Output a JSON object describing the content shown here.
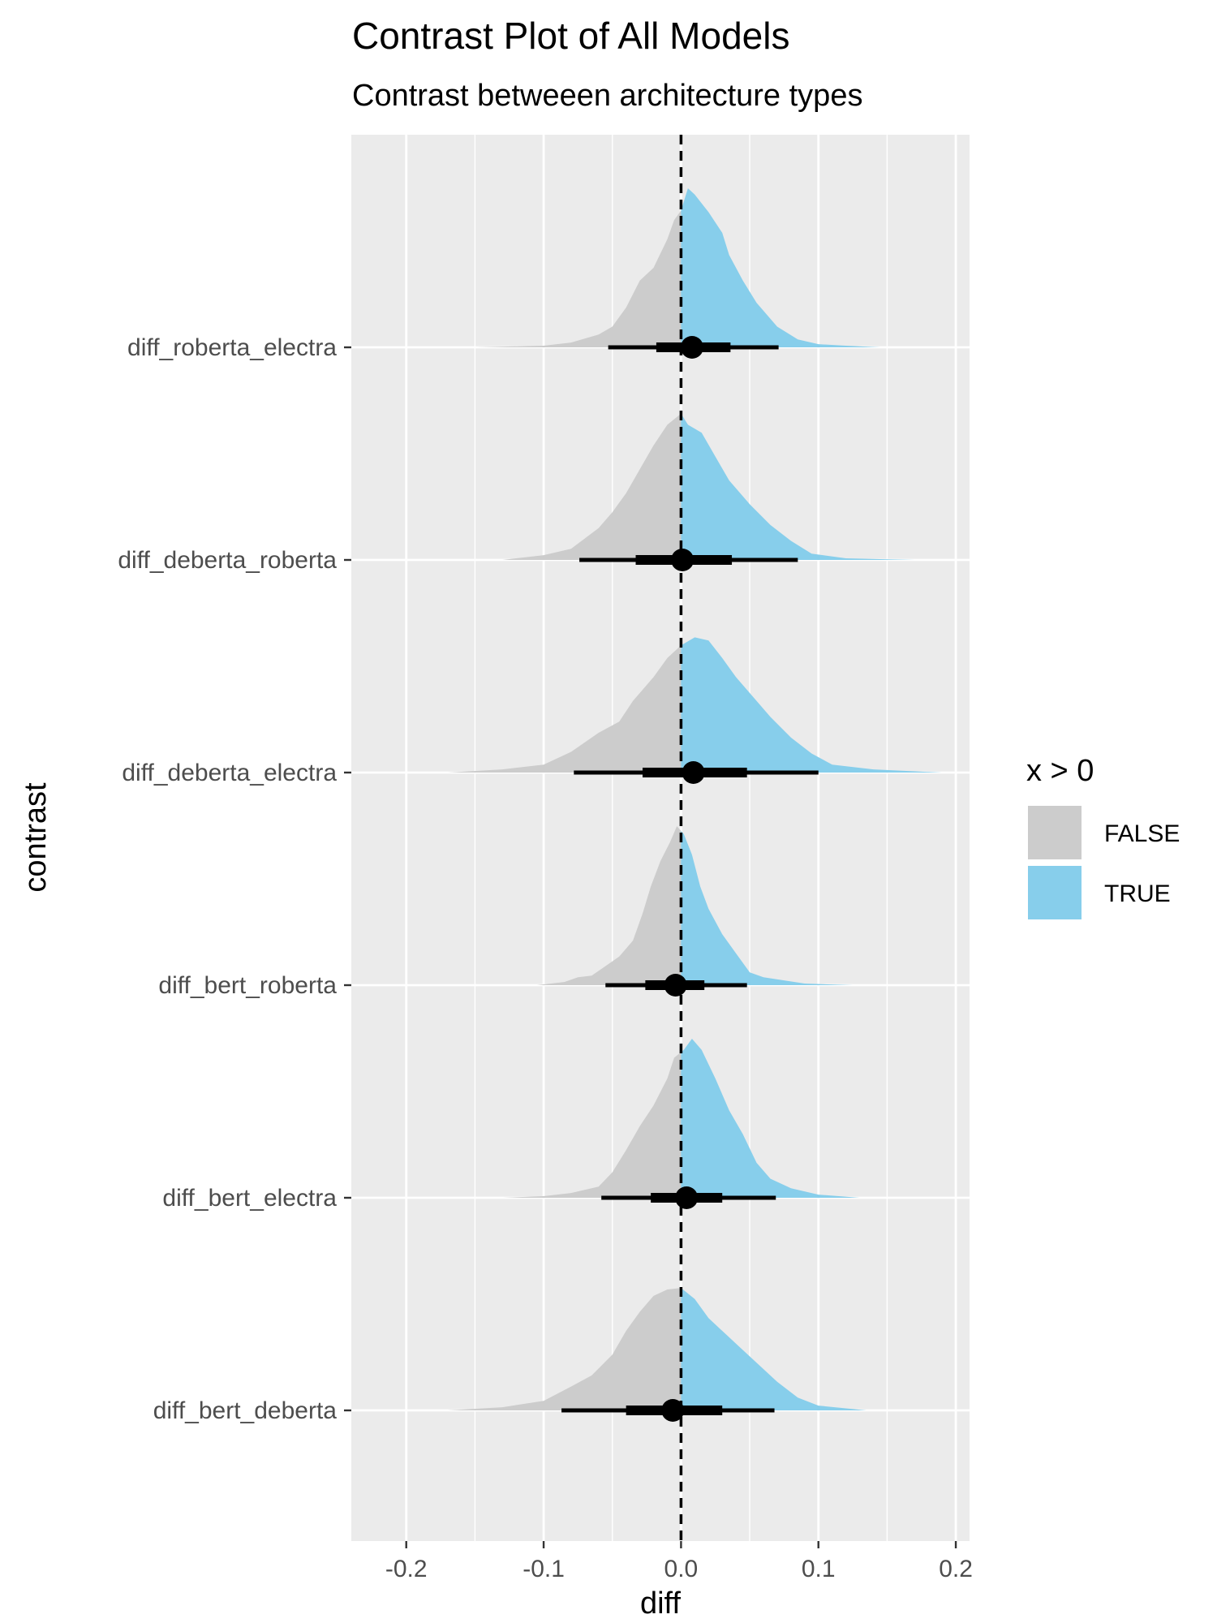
{
  "chart_data": {
    "type": "area",
    "title": "Contrast Plot of All Models",
    "subtitle": "Contrast betweeen architecture types",
    "xlabel": "diff",
    "ylabel": "contrast",
    "xlim": [
      -0.24,
      0.21
    ],
    "x_ticks": [
      -0.2,
      -0.1,
      0.0,
      0.1,
      0.2
    ],
    "x_tick_labels": [
      "-0.2",
      "-0.1",
      "0.0",
      "0.1",
      "0.2"
    ],
    "reference_line": {
      "x": 0,
      "style": "dashed"
    },
    "legend": {
      "title": "x > 0",
      "position": "right",
      "items": [
        {
          "label": "FALSE",
          "color": "#cccccc"
        },
        {
          "label": "TRUE",
          "color": "#87ceeb"
        }
      ]
    },
    "categories": [
      "diff_roberta_electra",
      "diff_deberta_roberta",
      "diff_deberta_electra",
      "diff_bert_roberta",
      "diff_bert_electra",
      "diff_bert_deberta"
    ],
    "series": [
      {
        "label": "diff_roberta_electra",
        "median": 0.008,
        "interval_66": [
          -0.018,
          0.036
        ],
        "interval_95": [
          -0.053,
          0.071
        ],
        "density": [
          [
            -0.15,
            0
          ],
          [
            -0.1,
            0.01
          ],
          [
            -0.08,
            0.03
          ],
          [
            -0.06,
            0.08
          ],
          [
            -0.05,
            0.13
          ],
          [
            -0.04,
            0.25
          ],
          [
            -0.03,
            0.42
          ],
          [
            -0.02,
            0.5
          ],
          [
            -0.01,
            0.68
          ],
          [
            -0.005,
            0.8
          ],
          [
            0,
            0.86
          ],
          [
            0.005,
            1.0
          ],
          [
            0.01,
            0.96
          ],
          [
            0.02,
            0.85
          ],
          [
            0.03,
            0.72
          ],
          [
            0.035,
            0.58
          ],
          [
            0.045,
            0.42
          ],
          [
            0.055,
            0.28
          ],
          [
            0.07,
            0.13
          ],
          [
            0.085,
            0.05
          ],
          [
            0.1,
            0.02
          ],
          [
            0.12,
            0.01
          ],
          [
            0.145,
            0
          ]
        ]
      },
      {
        "label": "diff_deberta_roberta",
        "median": 0.001,
        "interval_66": [
          -0.033,
          0.037
        ],
        "interval_95": [
          -0.074,
          0.085
        ],
        "density": [
          [
            -0.13,
            0
          ],
          [
            -0.1,
            0.03
          ],
          [
            -0.08,
            0.07
          ],
          [
            -0.06,
            0.2
          ],
          [
            -0.05,
            0.3
          ],
          [
            -0.04,
            0.42
          ],
          [
            -0.03,
            0.57
          ],
          [
            -0.02,
            0.72
          ],
          [
            -0.01,
            0.85
          ],
          [
            0,
            0.92
          ],
          [
            0.005,
            0.85
          ],
          [
            0.015,
            0.8
          ],
          [
            0.025,
            0.65
          ],
          [
            0.035,
            0.5
          ],
          [
            0.05,
            0.35
          ],
          [
            0.065,
            0.22
          ],
          [
            0.08,
            0.12
          ],
          [
            0.095,
            0.04
          ],
          [
            0.12,
            0.01
          ],
          [
            0.17,
            0
          ]
        ]
      },
      {
        "label": "diff_deberta_electra",
        "median": 0.009,
        "interval_66": [
          -0.028,
          0.048
        ],
        "interval_95": [
          -0.078,
          0.1
        ],
        "density": [
          [
            -0.17,
            0
          ],
          [
            -0.13,
            0.02
          ],
          [
            -0.1,
            0.05
          ],
          [
            -0.08,
            0.13
          ],
          [
            -0.06,
            0.25
          ],
          [
            -0.045,
            0.32
          ],
          [
            -0.035,
            0.45
          ],
          [
            -0.02,
            0.6
          ],
          [
            -0.01,
            0.72
          ],
          [
            0,
            0.8
          ],
          [
            0.01,
            0.85
          ],
          [
            0.02,
            0.83
          ],
          [
            0.03,
            0.72
          ],
          [
            0.04,
            0.6
          ],
          [
            0.05,
            0.5
          ],
          [
            0.065,
            0.35
          ],
          [
            0.08,
            0.22
          ],
          [
            0.095,
            0.12
          ],
          [
            0.11,
            0.05
          ],
          [
            0.14,
            0.02
          ],
          [
            0.19,
            0
          ]
        ]
      },
      {
        "label": "diff_bert_roberta",
        "median": -0.004,
        "interval_66": [
          -0.026,
          0.017
        ],
        "interval_95": [
          -0.055,
          0.048
        ],
        "density": [
          [
            -0.105,
            0
          ],
          [
            -0.085,
            0.02
          ],
          [
            -0.075,
            0.05
          ],
          [
            -0.065,
            0.06
          ],
          [
            -0.055,
            0.12
          ],
          [
            -0.045,
            0.18
          ],
          [
            -0.035,
            0.28
          ],
          [
            -0.028,
            0.45
          ],
          [
            -0.022,
            0.62
          ],
          [
            -0.015,
            0.78
          ],
          [
            -0.008,
            0.9
          ],
          [
            -0.003,
            1.0
          ],
          [
            0.002,
            0.95
          ],
          [
            0.008,
            0.82
          ],
          [
            0.014,
            0.62
          ],
          [
            0.02,
            0.48
          ],
          [
            0.03,
            0.32
          ],
          [
            0.04,
            0.2
          ],
          [
            0.05,
            0.08
          ],
          [
            0.06,
            0.05
          ],
          [
            0.075,
            0.03
          ],
          [
            0.09,
            0.01
          ],
          [
            0.125,
            0
          ]
        ]
      },
      {
        "label": "diff_bert_electra",
        "median": 0.004,
        "interval_66": [
          -0.022,
          0.03
        ],
        "interval_95": [
          -0.058,
          0.069
        ],
        "density": [
          [
            -0.13,
            0
          ],
          [
            -0.1,
            0.01
          ],
          [
            -0.08,
            0.03
          ],
          [
            -0.06,
            0.07
          ],
          [
            -0.05,
            0.16
          ],
          [
            -0.04,
            0.3
          ],
          [
            -0.03,
            0.45
          ],
          [
            -0.02,
            0.58
          ],
          [
            -0.01,
            0.75
          ],
          [
            -0.005,
            0.88
          ],
          [
            0.002,
            0.93
          ],
          [
            0.008,
            1.0
          ],
          [
            0.015,
            0.93
          ],
          [
            0.025,
            0.75
          ],
          [
            0.035,
            0.55
          ],
          [
            0.045,
            0.4
          ],
          [
            0.055,
            0.22
          ],
          [
            0.065,
            0.12
          ],
          [
            0.08,
            0.06
          ],
          [
            0.1,
            0.02
          ],
          [
            0.13,
            0
          ]
        ]
      },
      {
        "label": "diff_bert_deberta",
        "median": -0.006,
        "interval_66": [
          -0.04,
          0.03
        ],
        "interval_95": [
          -0.087,
          0.068
        ],
        "density": [
          [
            -0.17,
            0
          ],
          [
            -0.13,
            0.02
          ],
          [
            -0.1,
            0.06
          ],
          [
            -0.08,
            0.15
          ],
          [
            -0.065,
            0.22
          ],
          [
            -0.05,
            0.35
          ],
          [
            -0.04,
            0.5
          ],
          [
            -0.03,
            0.62
          ],
          [
            -0.02,
            0.72
          ],
          [
            -0.01,
            0.76
          ],
          [
            0,
            0.77
          ],
          [
            0.01,
            0.7
          ],
          [
            0.02,
            0.58
          ],
          [
            0.03,
            0.5
          ],
          [
            0.04,
            0.42
          ],
          [
            0.055,
            0.3
          ],
          [
            0.07,
            0.18
          ],
          [
            0.085,
            0.08
          ],
          [
            0.1,
            0.03
          ],
          [
            0.135,
            0
          ]
        ]
      }
    ]
  }
}
